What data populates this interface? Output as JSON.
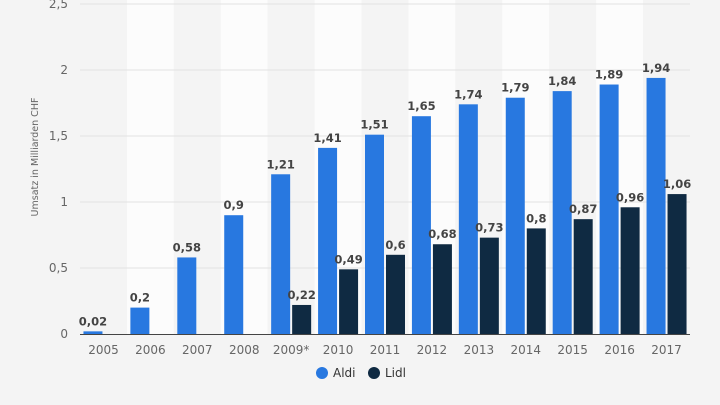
{
  "chart_data": {
    "type": "bar",
    "categories": [
      "2005",
      "2006",
      "2007",
      "2008",
      "2009*",
      "2010",
      "2011",
      "2012",
      "2013",
      "2014",
      "2015",
      "2016",
      "2017"
    ],
    "series": [
      {
        "name": "Aldi",
        "color": "#2878e0",
        "values": [
          0.02,
          0.2,
          0.58,
          0.9,
          1.21,
          1.41,
          1.51,
          1.65,
          1.74,
          1.79,
          1.84,
          1.89,
          1.94
        ],
        "labels": [
          "0,02",
          "0,2",
          "0,58",
          "0,9",
          "1,21",
          "1,41",
          "1,51",
          "1,65",
          "1,74",
          "1,79",
          "1,84",
          "1,89",
          "1,94"
        ]
      },
      {
        "name": "Lidl",
        "color": "#0f2a42",
        "values": [
          null,
          null,
          null,
          null,
          0.22,
          0.49,
          0.6,
          0.68,
          0.73,
          0.8,
          0.87,
          0.96,
          1.06
        ],
        "labels": [
          "",
          "",
          "",
          "",
          "0,22",
          "0,49",
          "0,6",
          "0,68",
          "0,73",
          "0,8",
          "0,87",
          "0,96",
          "1,06"
        ]
      }
    ],
    "ylabel": "Umsatz in Milliarden CHF",
    "ylim": [
      0,
      2.5
    ],
    "yticks": [
      0,
      0.5,
      1,
      1.5,
      2,
      2.5
    ],
    "ytick_labels": [
      "0",
      "0,5",
      "1",
      "1,5",
      "2",
      "2,5"
    ],
    "grid": true,
    "legend": "bottom-center"
  }
}
